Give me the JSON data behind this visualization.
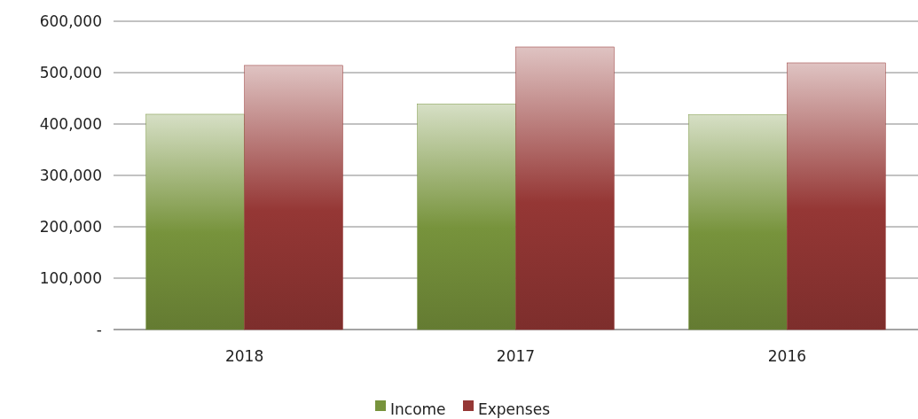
{
  "chart_data": {
    "type": "bar",
    "categories": [
      "2018",
      "2017",
      "2016"
    ],
    "series": [
      {
        "name": "Income",
        "color": "#77933c",
        "values": [
          419000,
          439000,
          418000
        ]
      },
      {
        "name": "Expenses",
        "color": "#953735",
        "values": [
          514000,
          550000,
          519000
        ]
      }
    ],
    "ylim": [
      0,
      600000
    ],
    "yticks": [
      {
        "value": 0,
        "label": "-"
      },
      {
        "value": 100000,
        "label": "100,000"
      },
      {
        "value": 200000,
        "label": "200,000"
      },
      {
        "value": 300000,
        "label": "300,000"
      },
      {
        "value": 400000,
        "label": "400,000"
      },
      {
        "value": 500000,
        "label": "500,000"
      },
      {
        "value": 600000,
        "label": "600,000"
      }
    ],
    "grid": "y",
    "legend": "bottom"
  }
}
